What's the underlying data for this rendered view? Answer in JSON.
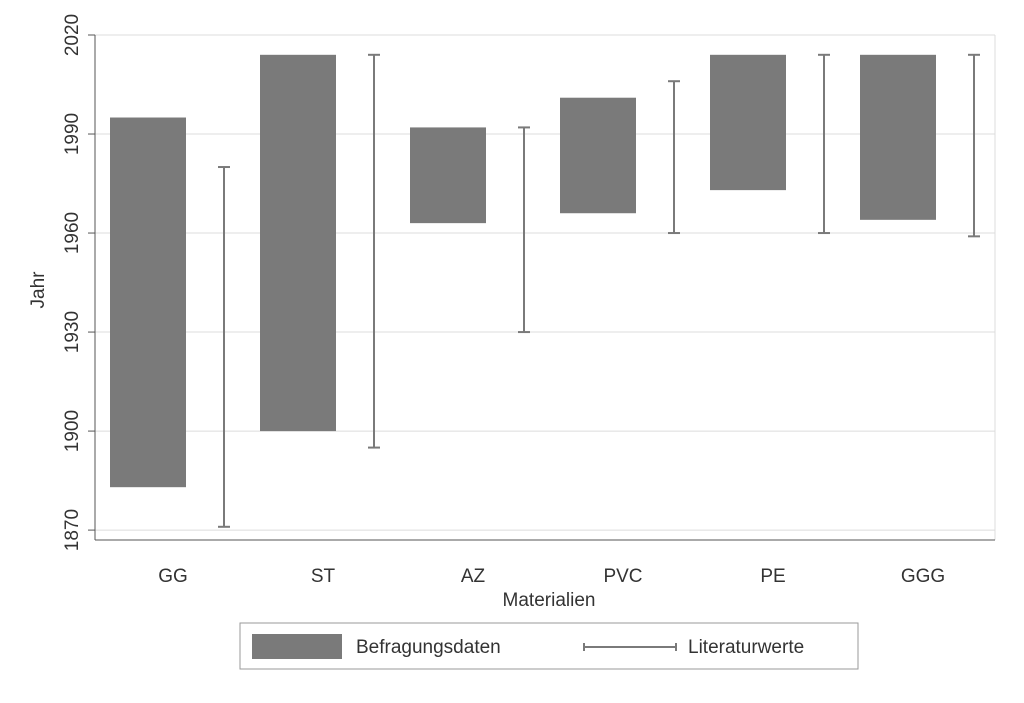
{
  "chart_data": {
    "type": "bar",
    "xlabel": "Materialien",
    "ylabel": "Jahr",
    "ylim": [
      1867,
      2020
    ],
    "yticks": [
      1870,
      1900,
      1930,
      1960,
      1990,
      2020
    ],
    "grid": true,
    "legend_position": "bottom",
    "categories": [
      "GG",
      "ST",
      "AZ",
      "PVC",
      "PE",
      "GGG"
    ],
    "series": [
      {
        "name": "Befragungsdaten",
        "kind": "floating-bar",
        "color": "#7a7a7a",
        "low": [
          1883,
          1900,
          1963,
          1966,
          1973,
          1964
        ],
        "high": [
          1995,
          2014,
          1992,
          2001,
          2014,
          2014
        ]
      },
      {
        "name": "Literaturwerte",
        "kind": "range-line",
        "color": "#7a7a7a",
        "low": [
          1871,
          1895,
          1930,
          1960,
          1960,
          1959
        ],
        "high": [
          1980,
          2014,
          1992,
          2006,
          2014,
          2014
        ]
      }
    ]
  }
}
